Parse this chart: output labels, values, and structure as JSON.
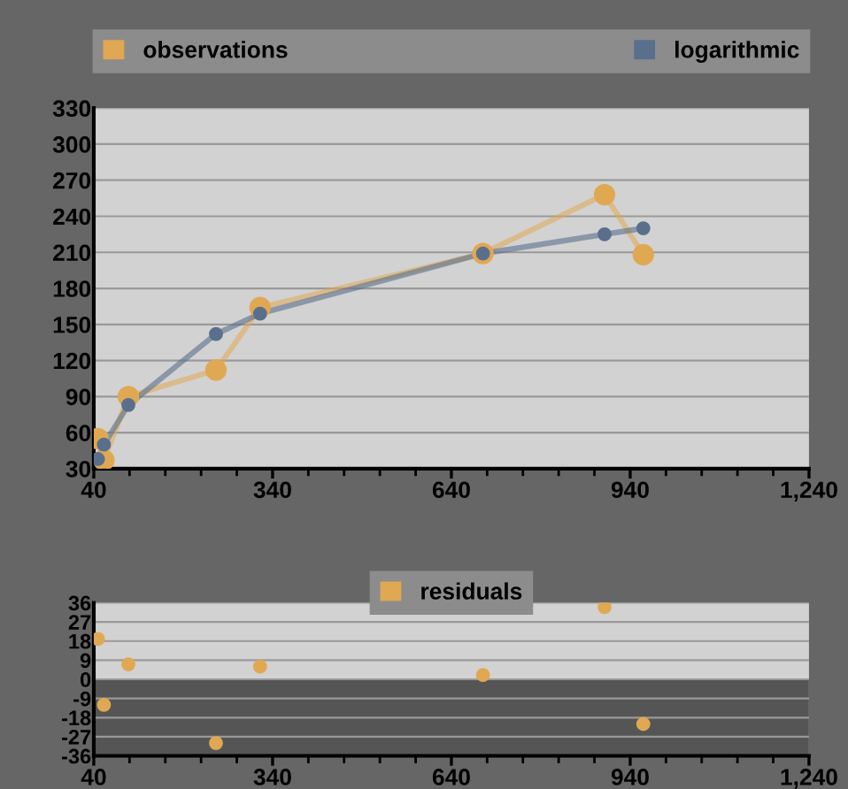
{
  "chart_data": [
    {
      "type": "line",
      "xlim": [
        40,
        1240
      ],
      "xticks": [
        40,
        340,
        640,
        940,
        {
          "value": 1240,
          "label": "1,240"
        }
      ],
      "ylim": [
        30,
        330
      ],
      "yticks": [
        30,
        60,
        90,
        120,
        150,
        180,
        210,
        240,
        270,
        300,
        330
      ],
      "grid": "y",
      "legend": "top",
      "marker": "circle",
      "line_style": "solid",
      "series": [
        {
          "name": "observations",
          "color": "#e0a852",
          "x": [
            47,
            57,
            98,
            245,
            319,
            693,
            897,
            962
          ],
          "values": [
            55,
            37,
            90,
            112,
            164,
            209,
            258,
            208
          ]
        },
        {
          "name": "logarithmic",
          "color": "#5a6f8c",
          "x": [
            47,
            57,
            98,
            245,
            319,
            693,
            897,
            962
          ],
          "values": [
            38,
            50,
            83,
            142,
            159,
            209,
            225,
            230
          ]
        }
      ]
    },
    {
      "type": "scatter",
      "xlim": [
        40,
        1240
      ],
      "xticks": [
        40,
        340,
        640,
        940,
        {
          "value": 1240,
          "label": "1,240"
        }
      ],
      "ylim": [
        -36,
        36
      ],
      "yticks": [
        -36,
        -27,
        -18,
        -9,
        0,
        9,
        18,
        27,
        36
      ],
      "grid": "y",
      "legend": "top",
      "marker": "circle",
      "bands": [
        {
          "axis": "y",
          "from": -36,
          "to": 0,
          "color": "#555555"
        }
      ],
      "series": [
        {
          "name": "residuals",
          "color": "#e0a852",
          "x": [
            47,
            57,
            98,
            245,
            319,
            693,
            897,
            962
          ],
          "values": [
            19,
            -12,
            7,
            -30,
            6,
            2,
            34,
            -21
          ]
        }
      ]
    }
  ]
}
